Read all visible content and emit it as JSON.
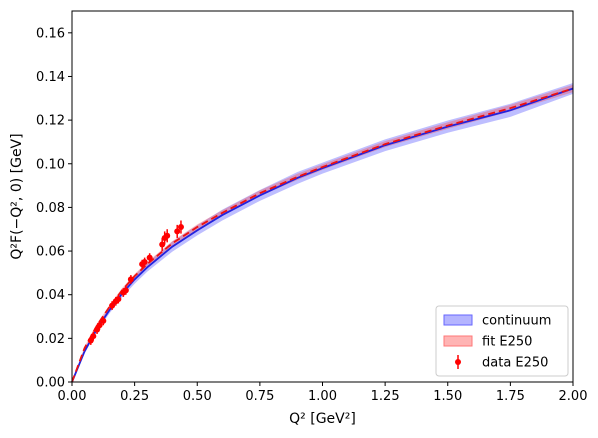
{
  "chart_data": {
    "type": "line",
    "xlabel": "Q² [GeV²]",
    "ylabel": "Q²F(−Q², 0) [GeV]",
    "xlim": [
      0.0,
      2.0
    ],
    "ylim": [
      0.0,
      0.17
    ],
    "xticks": [
      "0.00",
      "0.25",
      "0.50",
      "0.75",
      "1.00",
      "1.25",
      "1.50",
      "1.75",
      "2.00"
    ],
    "yticks": [
      "0.00",
      "0.02",
      "0.04",
      "0.06",
      "0.08",
      "0.10",
      "0.12",
      "0.14",
      "0.16"
    ],
    "grid": false,
    "legend_position": "bottom-right",
    "colors": {
      "continuum": "#4444ff",
      "fit": "#ff4444",
      "data": "#ff0000"
    },
    "series": [
      {
        "name": "continuum",
        "kind": "band-with-line",
        "x": [
          0.0,
          0.05,
          0.1,
          0.15,
          0.2,
          0.25,
          0.3,
          0.4,
          0.5,
          0.6,
          0.75,
          0.9,
          1.0,
          1.25,
          1.5,
          1.75,
          2.0
        ],
        "y": [
          0.0,
          0.014,
          0.0245,
          0.033,
          0.0405,
          0.047,
          0.0525,
          0.062,
          0.0695,
          0.0765,
          0.0855,
          0.0935,
          0.098,
          0.1085,
          0.117,
          0.1245,
          0.1345
        ],
        "y_low": [
          0.0,
          0.013,
          0.0232,
          0.0315,
          0.0388,
          0.045,
          0.0505,
          0.0597,
          0.0672,
          0.074,
          0.083,
          0.0908,
          0.0955,
          0.1058,
          0.1142,
          0.1215,
          0.132
        ],
        "y_high": [
          0.0,
          0.015,
          0.0258,
          0.0345,
          0.0422,
          0.049,
          0.0545,
          0.0643,
          0.0718,
          0.079,
          0.088,
          0.0962,
          0.1005,
          0.1112,
          0.1198,
          0.1275,
          0.137
        ]
      },
      {
        "name": "fit E250",
        "kind": "band-with-line",
        "x": [
          0.0,
          0.05,
          0.1,
          0.15,
          0.2,
          0.25,
          0.3,
          0.4,
          0.5,
          0.6,
          0.75,
          0.9,
          1.0,
          1.25,
          1.5,
          1.75,
          2.0
        ],
        "y": [
          0.0,
          0.0155,
          0.026,
          0.0345,
          0.042,
          0.0485,
          0.054,
          0.0635,
          0.071,
          0.0775,
          0.0865,
          0.094,
          0.0985,
          0.109,
          0.1175,
          0.1255,
          0.1345
        ],
        "y_low": [
          0.0,
          0.0148,
          0.0252,
          0.0337,
          0.041,
          0.0475,
          0.053,
          0.0625,
          0.0698,
          0.0763,
          0.0852,
          0.0926,
          0.0972,
          0.1076,
          0.116,
          0.124,
          0.1328
        ],
        "y_high": [
          0.0,
          0.0162,
          0.0268,
          0.0353,
          0.043,
          0.0495,
          0.055,
          0.0645,
          0.0722,
          0.0787,
          0.0878,
          0.0954,
          0.0998,
          0.1104,
          0.119,
          0.127,
          0.1362
        ]
      },
      {
        "name": "data E250",
        "kind": "errorbar",
        "x": [
          0.075,
          0.085,
          0.1,
          0.11,
          0.125,
          0.16,
          0.175,
          0.185,
          0.205,
          0.215,
          0.235,
          0.28,
          0.29,
          0.31,
          0.36,
          0.37,
          0.38,
          0.42,
          0.435
        ],
        "y": [
          0.019,
          0.021,
          0.024,
          0.026,
          0.028,
          0.035,
          0.037,
          0.038,
          0.041,
          0.042,
          0.047,
          0.054,
          0.055,
          0.057,
          0.063,
          0.066,
          0.067,
          0.069,
          0.071
        ],
        "err": [
          0.002,
          0.002,
          0.002,
          0.002,
          0.002,
          0.002,
          0.002,
          0.002,
          0.002,
          0.002,
          0.002,
          0.002,
          0.002,
          0.002,
          0.003,
          0.003,
          0.003,
          0.003,
          0.003
        ]
      }
    ]
  }
}
